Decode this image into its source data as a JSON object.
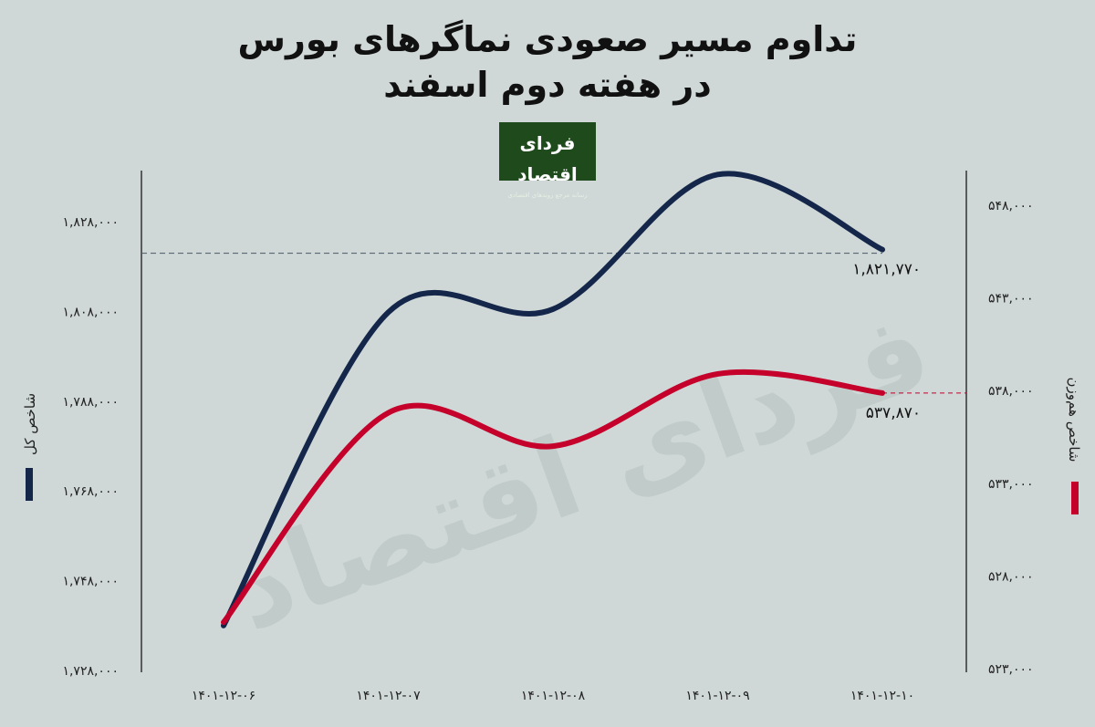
{
  "title": {
    "line1": "تداوم مسیر صعودی نماگرهای بورس",
    "line2": "در هفته دوم اسفند"
  },
  "logo": {
    "name": "فردای اقتصاد",
    "tagline": "رسانه مرجع روندهای اقتصادی"
  },
  "watermark": "فردای اقتصاد",
  "chart_data": {
    "type": "line",
    "x": [
      "۱۴۰۱-۱۲-۰۶",
      "۱۴۰۱-۱۲-۰۷",
      "۱۴۰۱-۱۲-۰۸",
      "۱۴۰۱-۱۲-۰۹",
      "۱۴۰۱-۱۲-۱۰"
    ],
    "y_left": {
      "label": "شاخص کل",
      "ticks": [
        "۱,۸۲۸,۰۰۰",
        "۱,۸۰۸,۰۰۰",
        "۱,۷۸۸,۰۰۰",
        "۱,۷۶۸,۰۰۰",
        "۱,۷۴۸,۰۰۰",
        "۱,۷۲۸,۰۰۰"
      ],
      "tick_values": [
        1828000,
        1808000,
        1788000,
        1768000,
        1748000,
        1728000
      ]
    },
    "y_right": {
      "label": "شاخص هم‌وزن",
      "ticks": [
        "۵۴۸,۰۰۰",
        "۵۴۳,۰۰۰",
        "۵۳۸,۰۰۰",
        "۵۳۳,۰۰۰",
        "۵۲۸,۰۰۰",
        "۵۲۳,۰۰۰"
      ],
      "tick_values": [
        548000,
        543000,
        538000,
        533000,
        528000,
        523000
      ]
    },
    "series": [
      {
        "name": "شاخص کل",
        "axis": "left",
        "color": "#14264a",
        "values": [
          1738000,
          1807800,
          1808500,
          1838500,
          1821770
        ],
        "end_label": "۱,۸۲۱,۷۷۰"
      },
      {
        "name": "شاخص هم‌وزن",
        "axis": "right",
        "color": "#c4002b",
        "values": [
          525500,
          536800,
          535000,
          538900,
          537870
        ],
        "end_label": "۵۳۷,۸۷۰"
      }
    ]
  }
}
